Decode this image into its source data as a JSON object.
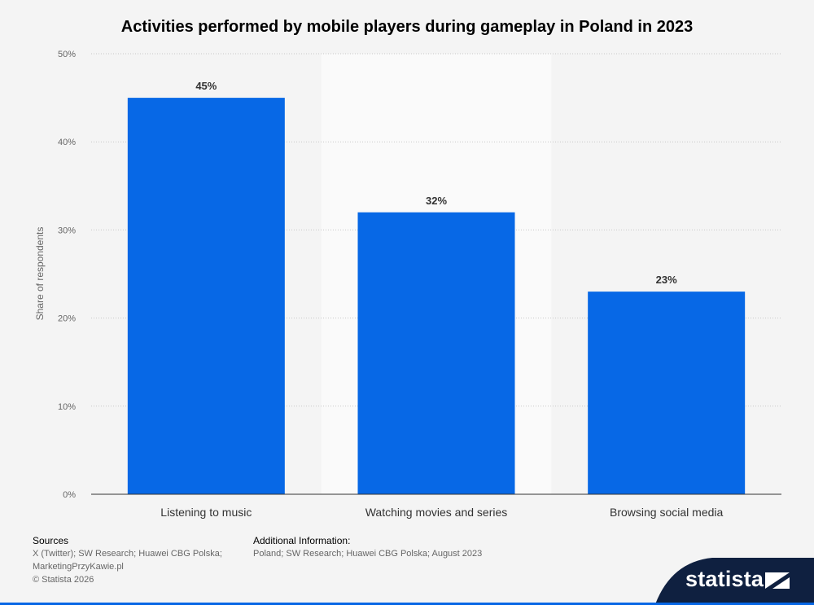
{
  "chart_data": {
    "type": "bar",
    "title": "Activities performed by mobile players during gameplay in Poland in 2023",
    "ylabel": "Share of respondents",
    "xlabel": "",
    "categories": [
      "Listening to music",
      "Watching movies and series",
      "Browsing social media"
    ],
    "values": [
      45,
      32,
      23
    ],
    "value_labels": [
      "45%",
      "32%",
      "23%"
    ],
    "ylim": [
      0,
      50
    ],
    "yticks": [
      0,
      10,
      20,
      30,
      40,
      50
    ],
    "ytick_labels": [
      "0%",
      "10%",
      "20%",
      "30%",
      "40%",
      "50%"
    ],
    "grid": true,
    "bar_color": "#0768e6",
    "highlight_band_color": "#fafafa"
  },
  "footer": {
    "sources_heading": "Sources",
    "sources_line1": "X (Twitter); SW Research; Huawei CBG Polska;",
    "sources_line2": "MarketingPrzyKawie.pl",
    "copyright": "© Statista 2026",
    "additional_heading": "Additional Information:",
    "additional_text": "Poland; SW Research; Huawei CBG Polska; August 2023"
  },
  "brand": {
    "logo_text": "statista",
    "logo_bg": "#0f2040",
    "accent": "#0666e5"
  }
}
